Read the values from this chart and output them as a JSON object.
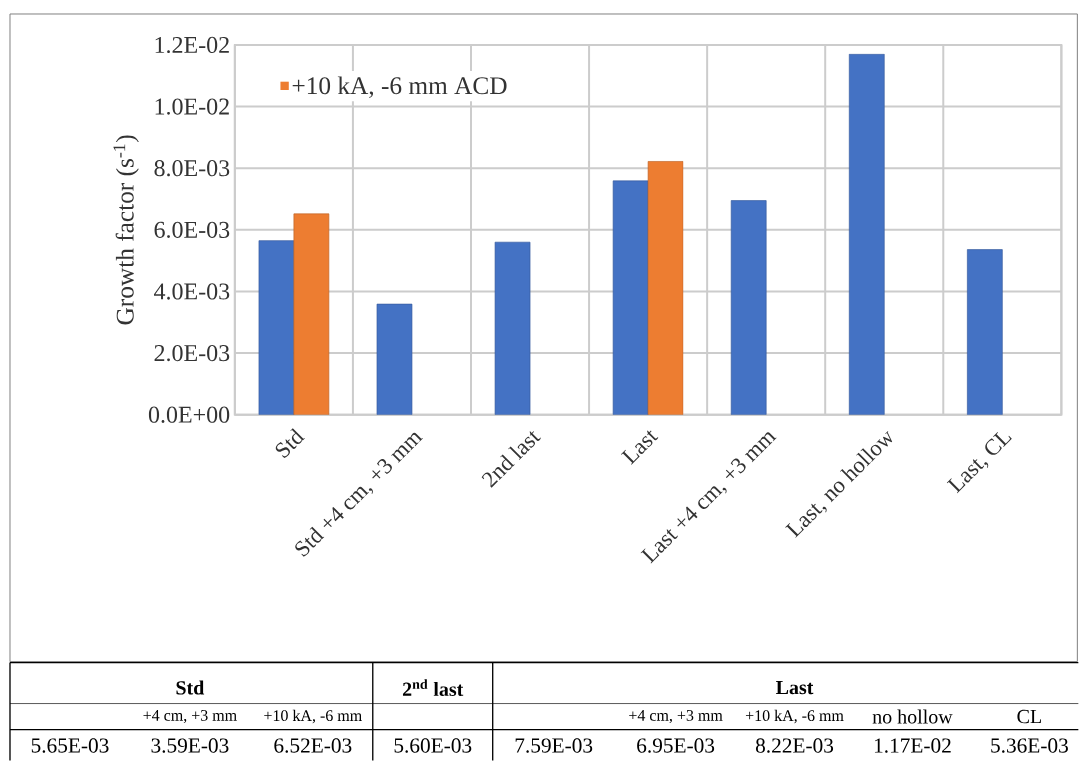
{
  "chart_data": {
    "type": "bar",
    "ylabel": "Growth factor (s$^{-1}$)",
    "categories": [
      "Std",
      "Std +4 cm, +3 mm",
      "2nd last",
      "Last",
      "Last +4 cm, +3 mm",
      "Last, no hollow",
      "Last, CL"
    ],
    "series": [
      {
        "color": "#4472c4",
        "values": [
          0.00565,
          0.00359,
          0.0056,
          0.00759,
          0.00695,
          0.0117,
          0.00536
        ]
      },
      {
        "name": "+10 kA, -6 mm ACD",
        "color": "#ed7d31",
        "values": [
          0.00652,
          null,
          null,
          0.00822,
          null,
          null,
          null
        ]
      }
    ],
    "ylim": [
      0,
      0.012
    ],
    "yticks": [
      {
        "value": 0,
        "label": "0.0E+00"
      },
      {
        "value": 0.002,
        "label": "2.0E-03"
      },
      {
        "value": 0.004,
        "label": "4.0E-03"
      },
      {
        "value": 0.006,
        "label": "6.0E-03"
      },
      {
        "value": 0.008,
        "label": "8.0E-03"
      },
      {
        "value": 0.01,
        "label": "1.0E-02"
      },
      {
        "value": 0.012,
        "label": "1.2E-02"
      }
    ],
    "grid": true,
    "legend": "top left",
    "annotations": [
      "Std",
      "2$^{nd}$ last",
      "Last",
      "+4 cm, +3 mm",
      "+10 kA, -6 mm",
      "+4 cm, +3 mm",
      "+10 kA, -6 mm",
      "no hollow",
      "CL",
      "5.65E-03",
      "3.59E-03",
      "6.52E-03",
      "5.60E-03",
      "7.59E-03",
      "6.95E-03",
      "8.22E-03",
      "1.17E-02",
      "5.36E-03"
    ]
  }
}
